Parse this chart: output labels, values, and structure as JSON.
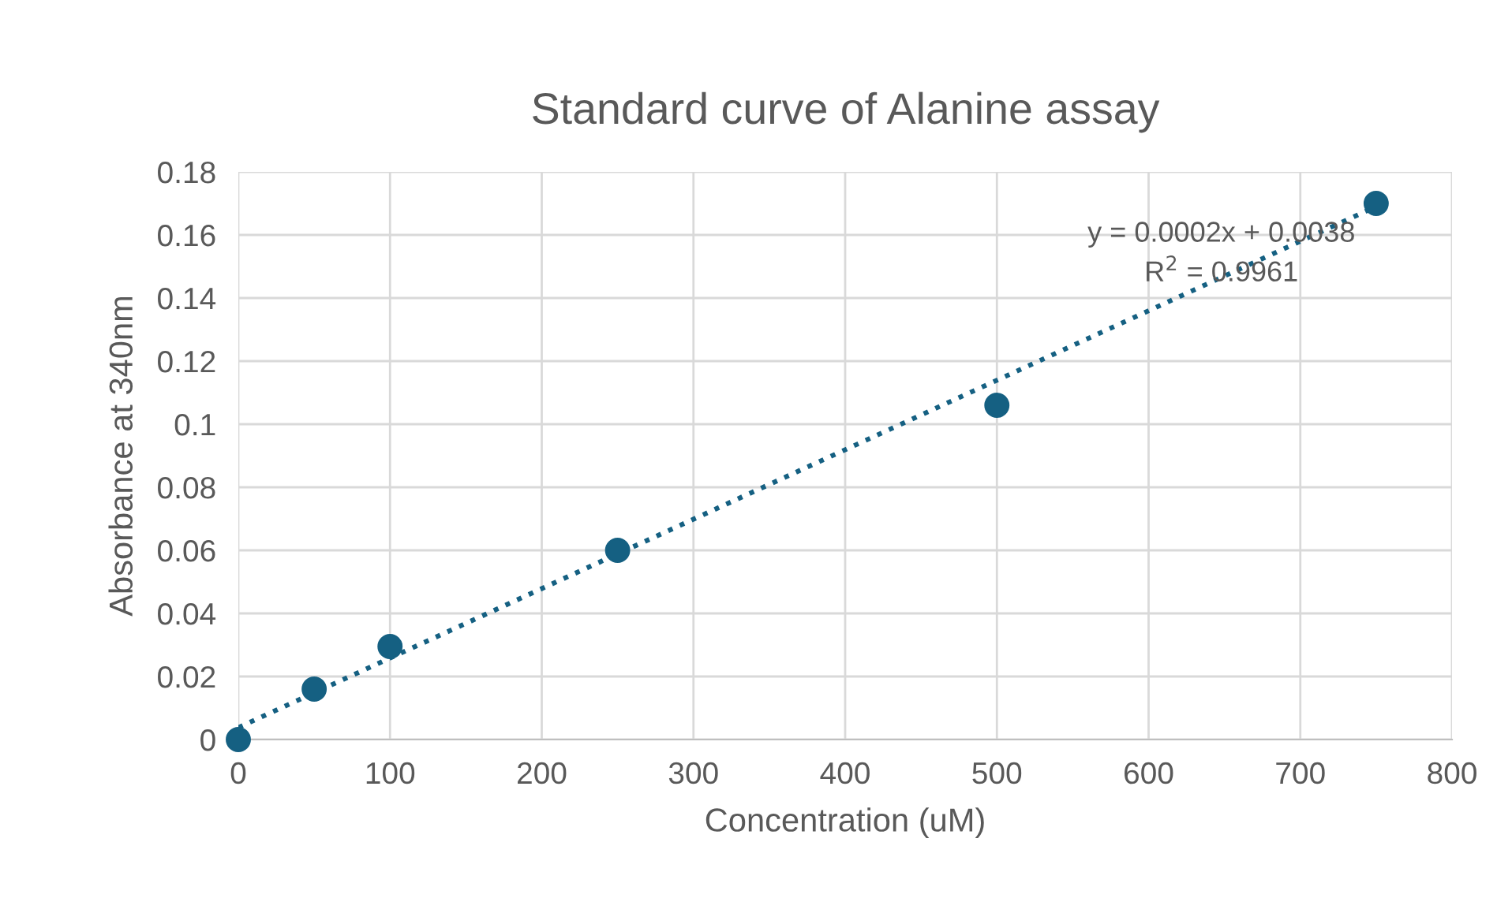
{
  "chart_data": {
    "type": "scatter",
    "title": "Standard curve of Alanine assay",
    "xlabel": "Concentration (uM)",
    "ylabel": "Absorbance at 340nm",
    "series": [
      {
        "color": "#156082",
        "x": [
          0,
          50,
          100,
          250,
          500,
          750
        ],
        "values": [
          0,
          0.016,
          0.0295,
          0.06,
          0.106,
          0.17
        ],
        "marker": "circle"
      },
      {
        "type": "line",
        "color": "#156082",
        "x": [
          0,
          750
        ],
        "values": [
          0.0038,
          0.169
        ],
        "line_style": "dotted",
        "marker": "none"
      }
    ],
    "annotations": [
      "y = 0.0002x + 0.0038",
      "R$^{2}$ = 0.9961"
    ],
    "xlim": [
      0,
      800
    ],
    "xticks": [
      0,
      100,
      200,
      300,
      400,
      500,
      600,
      700,
      800
    ],
    "ylim": [
      0,
      0.18
    ],
    "yticks": [
      0,
      {
        "value": 0.02,
        "label": "0.02"
      },
      {
        "value": 0.04,
        "label": "0.04"
      },
      {
        "value": 0.06,
        "label": "0.06"
      },
      {
        "value": 0.08,
        "label": "0.08"
      },
      {
        "value": 0.1,
        "label": "0.1"
      },
      {
        "value": 0.12,
        "label": "0.12"
      },
      {
        "value": 0.14,
        "label": "0.14"
      },
      {
        "value": 0.16,
        "label": "0.16"
      },
      {
        "value": 0.18,
        "label": "0.18"
      }
    ],
    "grid": true,
    "legend": false
  }
}
